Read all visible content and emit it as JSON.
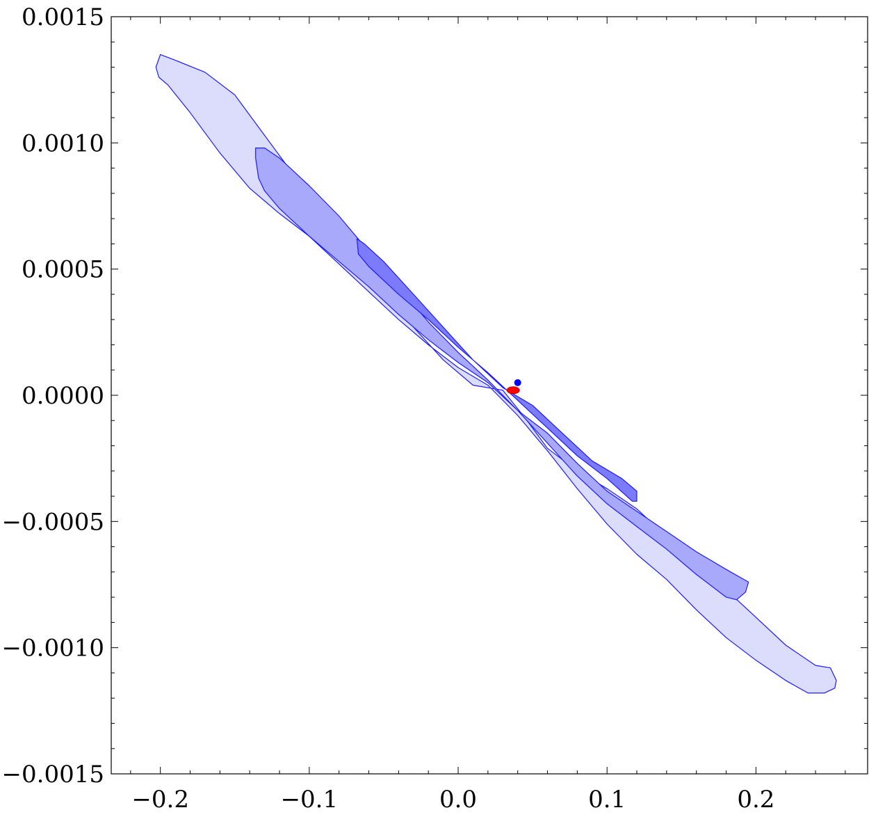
{
  "chart_data": {
    "type": "contour",
    "title": "",
    "xlabel": "",
    "ylabel": "",
    "xlim": [
      -0.233,
      0.275
    ],
    "ylim": [
      -0.0015,
      0.0015
    ],
    "x_ticks": [
      {
        "value": -0.2,
        "label": "−0.2"
      },
      {
        "value": -0.1,
        "label": "−0.1"
      },
      {
        "value": 0.0,
        "label": "0.0"
      },
      {
        "value": 0.1,
        "label": "0.1"
      },
      {
        "value": 0.2,
        "label": "0.2"
      }
    ],
    "y_ticks": [
      {
        "value": 0.0015,
        "label": "0.0015"
      },
      {
        "value": 0.001,
        "label": "0.0010"
      },
      {
        "value": 0.0005,
        "label": "0.0005"
      },
      {
        "value": 0.0,
        "label": "0.0000"
      },
      {
        "value": -0.0005,
        "label": "−0.0005"
      },
      {
        "value": -0.001,
        "label": "−0.0010"
      },
      {
        "value": -0.0015,
        "label": "−0.0015"
      }
    ],
    "x_minor_step": 0.02,
    "y_minor_step": 0.0001,
    "grid": false,
    "legend": "none",
    "colors": {
      "outline": "#1a1aff",
      "level1_fill": "#dcdcfc",
      "level2_fill": "#a9a9fb",
      "level3_fill": "#7b7bfb",
      "blue_point": "#0000ff",
      "red_point": "#ff0000"
    },
    "contours": [
      {
        "level": 1,
        "points": [
          [
            -0.2,
            0.00135
          ],
          [
            -0.191,
            0.00133
          ],
          [
            -0.17,
            0.00128
          ],
          [
            -0.15,
            0.00119
          ],
          [
            -0.13,
            0.00103
          ],
          [
            -0.11,
            0.00087
          ],
          [
            -0.09,
            0.00071
          ],
          [
            -0.07,
            0.00055
          ],
          [
            -0.05,
            0.00041
          ],
          [
            -0.03,
            0.00027
          ],
          [
            -0.01,
            0.00014
          ],
          [
            0.01,
            4e-05
          ],
          [
            0.03,
            2e-05
          ],
          [
            0.045,
            -9e-05
          ],
          [
            0.06,
            -0.00021
          ],
          [
            0.08,
            -0.0003
          ],
          [
            0.1,
            -0.00037
          ],
          [
            0.12,
            -0.00045
          ],
          [
            0.14,
            -0.00056
          ],
          [
            0.16,
            -0.00066
          ],
          [
            0.18,
            -0.00077
          ],
          [
            0.2,
            -0.00088
          ],
          [
            0.22,
            -0.00099
          ],
          [
            0.24,
            -0.00107
          ],
          [
            0.25,
            -0.00108
          ],
          [
            0.254,
            -0.00113
          ],
          [
            0.253,
            -0.00116
          ],
          [
            0.246,
            -0.00118
          ],
          [
            0.235,
            -0.00118
          ],
          [
            0.22,
            -0.00113
          ],
          [
            0.2,
            -0.00105
          ],
          [
            0.18,
            -0.00096
          ],
          [
            0.16,
            -0.00085
          ],
          [
            0.14,
            -0.00073
          ],
          [
            0.12,
            -0.00063
          ],
          [
            0.1,
            -0.00051
          ],
          [
            0.08,
            -0.00037
          ],
          [
            0.06,
            -0.00022
          ],
          [
            0.04,
            -8e-05
          ],
          [
            0.02,
            4e-05
          ],
          [
            0.0,
            0.00011
          ],
          [
            -0.02,
            0.0002
          ],
          [
            -0.04,
            0.0003
          ],
          [
            -0.06,
            0.00041
          ],
          [
            -0.08,
            0.00052
          ],
          [
            -0.1,
            0.00063
          ],
          [
            -0.12,
            0.00072
          ],
          [
            -0.14,
            0.00082
          ],
          [
            -0.16,
            0.00096
          ],
          [
            -0.18,
            0.00112
          ],
          [
            -0.195,
            0.00123
          ],
          [
            -0.201,
            0.00126
          ],
          [
            -0.203,
            0.0013
          ]
        ]
      },
      {
        "level": 2,
        "points": [
          [
            -0.136,
            0.00098
          ],
          [
            -0.13,
            0.00098
          ],
          [
            -0.12,
            0.00094
          ],
          [
            -0.1,
            0.00083
          ],
          [
            -0.08,
            0.00071
          ],
          [
            -0.06,
            0.00057
          ],
          [
            -0.04,
            0.00043
          ],
          [
            -0.02,
            0.00029
          ],
          [
            0.0,
            0.00017
          ],
          [
            0.02,
            6e-05
          ],
          [
            0.04,
            -6e-05
          ],
          [
            0.06,
            -0.00015
          ],
          [
            0.08,
            -0.00027
          ],
          [
            0.1,
            -0.00038
          ],
          [
            0.12,
            -0.00046
          ],
          [
            0.14,
            -0.00054
          ],
          [
            0.16,
            -0.00062
          ],
          [
            0.18,
            -0.00069
          ],
          [
            0.195,
            -0.00074
          ],
          [
            0.193,
            -0.00078
          ],
          [
            0.187,
            -0.00081
          ],
          [
            0.18,
            -0.0008
          ],
          [
            0.16,
            -0.00071
          ],
          [
            0.14,
            -0.00061
          ],
          [
            0.12,
            -0.00052
          ],
          [
            0.1,
            -0.00043
          ],
          [
            0.08,
            -0.00032
          ],
          [
            0.06,
            -0.00019
          ],
          [
            0.04,
            -6e-05
          ],
          [
            0.02,
            5e-05
          ],
          [
            0.0,
            0.00013
          ],
          [
            -0.02,
            0.00022
          ],
          [
            -0.04,
            0.00032
          ],
          [
            -0.06,
            0.00043
          ],
          [
            -0.08,
            0.00053
          ],
          [
            -0.1,
            0.00063
          ],
          [
            -0.12,
            0.00074
          ],
          [
            -0.13,
            0.00081
          ],
          [
            -0.134,
            0.00086
          ],
          [
            -0.136,
            0.00094
          ]
        ]
      },
      {
        "level": 3,
        "points": [
          [
            -0.068,
            0.00062
          ],
          [
            -0.063,
            0.0006
          ],
          [
            -0.05,
            0.00053
          ],
          [
            -0.03,
            0.0004
          ],
          [
            -0.01,
            0.00027
          ],
          [
            0.01,
            0.00014
          ],
          [
            0.03,
            3e-05
          ],
          [
            0.05,
            -4e-05
          ],
          [
            0.07,
            -0.00015
          ],
          [
            0.09,
            -0.00026
          ],
          [
            0.11,
            -0.00033
          ],
          [
            0.12,
            -0.00038
          ],
          [
            0.12,
            -0.00042
          ],
          [
            0.117,
            -0.00042
          ],
          [
            0.1,
            -0.00033
          ],
          [
            0.08,
            -0.00024
          ],
          [
            0.06,
            -0.00013
          ],
          [
            0.04,
            -2e-05
          ],
          [
            0.02,
            9e-05
          ],
          [
            0.0,
            0.00019
          ],
          [
            -0.02,
            0.0003
          ],
          [
            -0.04,
            0.0004
          ],
          [
            -0.06,
            0.00051
          ],
          [
            -0.067,
            0.00056
          ]
        ]
      }
    ],
    "points": [
      {
        "x": 0.04,
        "y": 5e-05,
        "color": "blue_point"
      },
      {
        "x": 0.037,
        "y": 2e-05,
        "color": "red_point"
      }
    ]
  }
}
